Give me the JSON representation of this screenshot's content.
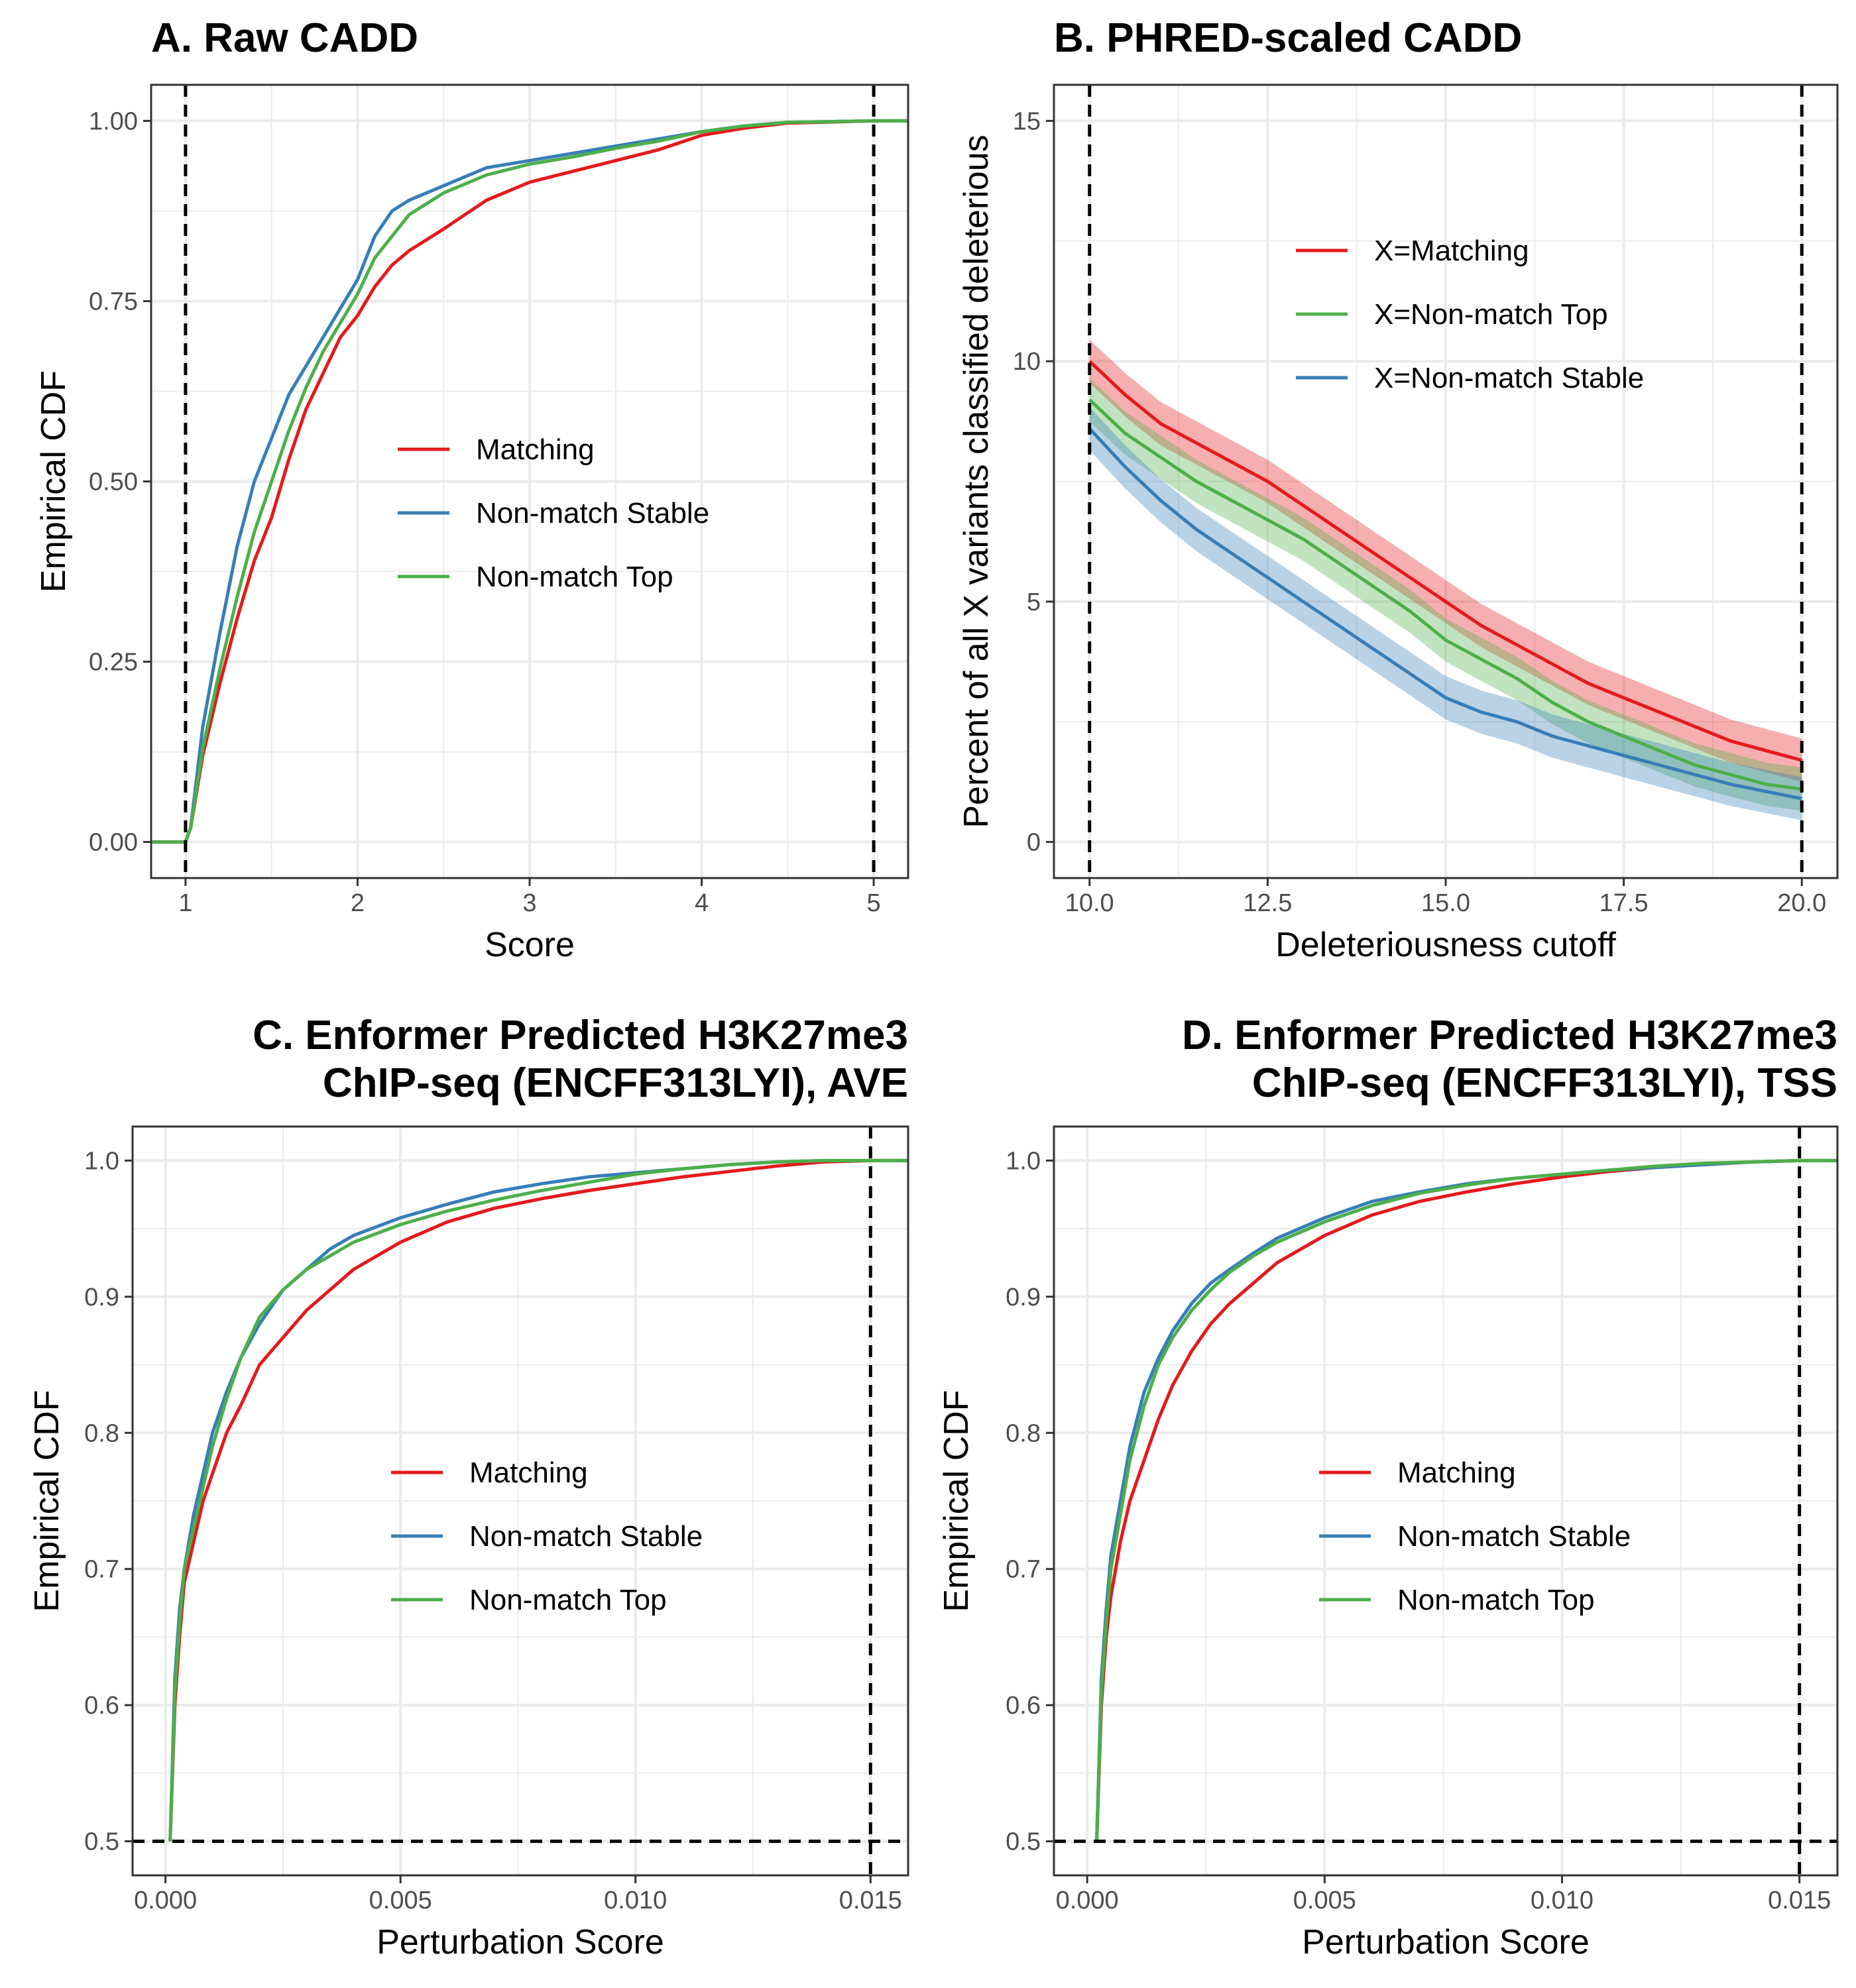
{
  "colors": {
    "matching": "#E41A1C",
    "stable": "#377EB8",
    "top": "#4DAF4A",
    "grid": "#EBEBEB"
  },
  "chart_data": [
    {
      "id": "A",
      "type": "line",
      "title": "A. Raw CADD",
      "xlabel": "Score",
      "ylabel": "Empirical CDF",
      "xlim": [
        0.8,
        5.2
      ],
      "ylim": [
        -0.05,
        1.05
      ],
      "xticks": [
        1,
        2,
        3,
        4,
        5
      ],
      "xtick_labels": [
        "1",
        "2",
        "3",
        "4",
        "5"
      ],
      "yticks": [
        0,
        0.25,
        0.5,
        0.75,
        1
      ],
      "ytick_labels": [
        "0.00",
        "0.25",
        "0.50",
        "0.75",
        "1.00"
      ],
      "vlines": [
        1,
        5
      ],
      "hlines": [],
      "grid": true,
      "legend_position": "center",
      "series": [
        {
          "name": "Matching",
          "color_key": "matching",
          "x": [
            0.8,
            1.0,
            1.03,
            1.1,
            1.2,
            1.3,
            1.4,
            1.5,
            1.6,
            1.7,
            1.8,
            1.9,
            2.0,
            2.1,
            2.2,
            2.3,
            2.5,
            2.75,
            3.0,
            3.25,
            3.5,
            3.75,
            4.0,
            4.25,
            4.5,
            5.0,
            5.2
          ],
          "y": [
            0,
            0,
            0.02,
            0.12,
            0.22,
            0.31,
            0.39,
            0.45,
            0.53,
            0.6,
            0.65,
            0.7,
            0.73,
            0.77,
            0.8,
            0.82,
            0.85,
            0.89,
            0.915,
            0.93,
            0.945,
            0.96,
            0.98,
            0.99,
            0.997,
            1.0,
            1.0
          ]
        },
        {
          "name": "Non-match Stable",
          "color_key": "stable",
          "x": [
            0.8,
            1.0,
            1.03,
            1.1,
            1.2,
            1.3,
            1.4,
            1.5,
            1.6,
            1.7,
            1.8,
            1.9,
            2.0,
            2.1,
            2.2,
            2.3,
            2.5,
            2.75,
            3.0,
            3.25,
            3.5,
            3.75,
            4.0,
            4.25,
            4.5,
            5.0,
            5.2
          ],
          "y": [
            0,
            0,
            0.02,
            0.16,
            0.29,
            0.41,
            0.5,
            0.56,
            0.62,
            0.66,
            0.7,
            0.74,
            0.78,
            0.84,
            0.875,
            0.89,
            0.91,
            0.935,
            0.945,
            0.955,
            0.965,
            0.975,
            0.985,
            0.993,
            0.998,
            1.0,
            1.0
          ]
        },
        {
          "name": "Non-match Top",
          "color_key": "top",
          "x": [
            0.8,
            1.0,
            1.03,
            1.1,
            1.2,
            1.3,
            1.4,
            1.5,
            1.6,
            1.7,
            1.8,
            1.9,
            2.0,
            2.1,
            2.2,
            2.3,
            2.5,
            2.75,
            3.0,
            3.25,
            3.5,
            3.75,
            4.0,
            4.25,
            4.5,
            5.0,
            5.2
          ],
          "y": [
            0,
            0,
            0.02,
            0.13,
            0.24,
            0.34,
            0.43,
            0.5,
            0.57,
            0.63,
            0.68,
            0.72,
            0.76,
            0.81,
            0.84,
            0.87,
            0.9,
            0.925,
            0.94,
            0.95,
            0.962,
            0.972,
            0.985,
            0.993,
            0.998,
            1.0,
            1.0
          ]
        }
      ]
    },
    {
      "id": "B",
      "type": "line",
      "title": "B. PHRED-scaled CADD",
      "xlabel": "Deleteriousness cutoff",
      "ylabel": "Percent of all X variants classified deleterious",
      "xlim": [
        9.5,
        20.5
      ],
      "ylim": [
        -0.75,
        15.75
      ],
      "xticks": [
        10,
        12.5,
        15,
        17.5,
        20
      ],
      "xtick_labels": [
        "10.0",
        "12.5",
        "15.0",
        "17.5",
        "20.0"
      ],
      "yticks": [
        0,
        5,
        10,
        15
      ],
      "ytick_labels": [
        "0",
        "5",
        "10",
        "15"
      ],
      "vlines": [
        10,
        20
      ],
      "hlines": [],
      "grid": true,
      "legend_position": "top-center",
      "ribbon_halfwidth": 0.45,
      "series": [
        {
          "name": "X=Matching",
          "color_key": "matching",
          "x": [
            10,
            10.5,
            11,
            11.5,
            12,
            12.5,
            13,
            13.5,
            14,
            14.5,
            15,
            15.5,
            16,
            16.5,
            17,
            17.5,
            18,
            18.5,
            19,
            19.5,
            20
          ],
          "y": [
            10.0,
            9.3,
            8.7,
            8.3,
            7.9,
            7.5,
            7.0,
            6.5,
            6.0,
            5.5,
            5.0,
            4.5,
            4.1,
            3.7,
            3.3,
            3.0,
            2.7,
            2.4,
            2.1,
            1.9,
            1.7
          ]
        },
        {
          "name": "X=Non-match Top",
          "color_key": "top",
          "x": [
            10,
            10.5,
            11,
            11.5,
            12,
            12.5,
            13,
            13.5,
            14,
            14.5,
            15,
            15.5,
            16,
            16.5,
            17,
            17.5,
            18,
            18.5,
            19,
            19.5,
            20
          ],
          "y": [
            9.2,
            8.5,
            8.0,
            7.5,
            7.1,
            6.7,
            6.3,
            5.8,
            5.3,
            4.8,
            4.2,
            3.8,
            3.4,
            2.9,
            2.5,
            2.2,
            1.9,
            1.6,
            1.4,
            1.2,
            1.1
          ]
        },
        {
          "name": "X=Non-match Stable",
          "color_key": "stable",
          "x": [
            10,
            10.5,
            11,
            11.5,
            12,
            12.5,
            13,
            13.5,
            14,
            14.5,
            15,
            15.5,
            16,
            16.5,
            17,
            17.5,
            18,
            18.5,
            19,
            19.5,
            20
          ],
          "y": [
            8.6,
            7.8,
            7.1,
            6.5,
            6.0,
            5.5,
            5.0,
            4.5,
            4.0,
            3.5,
            3.0,
            2.7,
            2.5,
            2.2,
            2.0,
            1.8,
            1.6,
            1.4,
            1.2,
            1.05,
            0.9
          ]
        }
      ]
    },
    {
      "id": "C",
      "type": "line",
      "title": "C. Enformer Predicted H3K27me3",
      "subtitle": "ChIP-seq (ENCFF313LYI), AVE",
      "xlabel": "Perturbation Score",
      "ylabel": "Empirical CDF",
      "xlim": [
        -0.0007,
        0.0158
      ],
      "ylim": [
        0.475,
        1.025
      ],
      "xticks": [
        0,
        0.005,
        0.01,
        0.015
      ],
      "xtick_labels": [
        "0.000",
        "0.005",
        "0.010",
        "0.015"
      ],
      "yticks": [
        0.5,
        0.6,
        0.7,
        0.8,
        0.9,
        1.0
      ],
      "ytick_labels": [
        "0.5",
        "0.6",
        "0.7",
        "0.8",
        "0.9",
        "1.0"
      ],
      "vlines": [
        0.015
      ],
      "hlines": [
        0.5
      ],
      "grid": true,
      "legend_position": "center",
      "series": [
        {
          "name": "Matching",
          "color_key": "matching",
          "x": [
            0.0001,
            0.0002,
            0.0003,
            0.0004,
            0.0006,
            0.0008,
            0.001,
            0.0013,
            0.0016,
            0.002,
            0.0025,
            0.003,
            0.0035,
            0.004,
            0.005,
            0.006,
            0.007,
            0.008,
            0.009,
            0.01,
            0.011,
            0.012,
            0.013,
            0.014,
            0.015,
            0.0158
          ],
          "y": [
            0.5,
            0.6,
            0.65,
            0.69,
            0.72,
            0.75,
            0.77,
            0.8,
            0.82,
            0.85,
            0.87,
            0.89,
            0.905,
            0.92,
            0.94,
            0.955,
            0.965,
            0.972,
            0.978,
            0.983,
            0.988,
            0.992,
            0.996,
            0.999,
            1.0,
            1.0
          ]
        },
        {
          "name": "Non-match Stable",
          "color_key": "stable",
          "x": [
            0.0001,
            0.0002,
            0.0003,
            0.0004,
            0.0006,
            0.0008,
            0.001,
            0.0013,
            0.0016,
            0.002,
            0.0025,
            0.003,
            0.0035,
            0.004,
            0.005,
            0.006,
            0.007,
            0.008,
            0.009,
            0.01,
            0.011,
            0.012,
            0.013,
            0.014,
            0.015,
            0.0158
          ],
          "y": [
            0.5,
            0.62,
            0.67,
            0.7,
            0.74,
            0.77,
            0.8,
            0.83,
            0.855,
            0.88,
            0.905,
            0.92,
            0.935,
            0.945,
            0.958,
            0.968,
            0.977,
            0.983,
            0.988,
            0.991,
            0.994,
            0.997,
            0.999,
            1.0,
            1.0,
            1.0
          ]
        },
        {
          "name": "Non-match Top",
          "color_key": "top",
          "x": [
            0.0001,
            0.0002,
            0.0003,
            0.0004,
            0.0006,
            0.0008,
            0.001,
            0.0013,
            0.0016,
            0.002,
            0.0025,
            0.003,
            0.0035,
            0.004,
            0.005,
            0.006,
            0.007,
            0.008,
            0.009,
            0.01,
            0.011,
            0.012,
            0.013,
            0.014,
            0.015,
            0.0158
          ],
          "y": [
            0.5,
            0.61,
            0.66,
            0.7,
            0.73,
            0.76,
            0.79,
            0.825,
            0.855,
            0.885,
            0.905,
            0.92,
            0.93,
            0.94,
            0.953,
            0.963,
            0.971,
            0.978,
            0.984,
            0.99,
            0.994,
            0.997,
            0.999,
            1.0,
            1.0,
            1.0
          ]
        }
      ]
    },
    {
      "id": "D",
      "type": "line",
      "title": "D. Enformer Predicted H3K27me3",
      "subtitle": "ChIP-seq (ENCFF313LYI), TSS",
      "xlabel": "Perturbation Score",
      "ylabel": "Empirical CDF",
      "xlim": [
        -0.0007,
        0.0158
      ],
      "ylim": [
        0.475,
        1.025
      ],
      "xticks": [
        0,
        0.005,
        0.01,
        0.015
      ],
      "xtick_labels": [
        "0.000",
        "0.005",
        "0.010",
        "0.015"
      ],
      "yticks": [
        0.5,
        0.6,
        0.7,
        0.8,
        0.9,
        1.0
      ],
      "ytick_labels": [
        "0.5",
        "0.6",
        "0.7",
        "0.8",
        "0.9",
        "1.0"
      ],
      "vlines": [
        0.015
      ],
      "hlines": [
        0.5
      ],
      "grid": true,
      "legend_position": "center",
      "series": [
        {
          "name": "Matching",
          "color_key": "matching",
          "x": [
            0.0002,
            0.0003,
            0.0004,
            0.0005,
            0.0007,
            0.0009,
            0.0012,
            0.0015,
            0.0018,
            0.0022,
            0.0026,
            0.003,
            0.0035,
            0.004,
            0.005,
            0.006,
            0.007,
            0.008,
            0.009,
            0.01,
            0.011,
            0.012,
            0.013,
            0.014,
            0.015,
            0.0158
          ],
          "y": [
            0.5,
            0.6,
            0.65,
            0.68,
            0.72,
            0.75,
            0.78,
            0.81,
            0.835,
            0.86,
            0.88,
            0.895,
            0.91,
            0.925,
            0.945,
            0.96,
            0.97,
            0.977,
            0.983,
            0.988,
            0.992,
            0.995,
            0.997,
            0.999,
            1.0,
            1.0
          ]
        },
        {
          "name": "Non-match Stable",
          "color_key": "stable",
          "x": [
            0.0002,
            0.0003,
            0.0004,
            0.0005,
            0.0007,
            0.0009,
            0.0012,
            0.0015,
            0.0018,
            0.0022,
            0.0026,
            0.003,
            0.0035,
            0.004,
            0.005,
            0.006,
            0.007,
            0.008,
            0.009,
            0.01,
            0.011,
            0.012,
            0.013,
            0.014,
            0.015,
            0.0158
          ],
          "y": [
            0.5,
            0.62,
            0.67,
            0.71,
            0.75,
            0.79,
            0.83,
            0.855,
            0.875,
            0.895,
            0.91,
            0.92,
            0.932,
            0.943,
            0.958,
            0.97,
            0.977,
            0.983,
            0.987,
            0.99,
            0.993,
            0.995,
            0.997,
            0.999,
            1.0,
            1.0
          ]
        },
        {
          "name": "Non-match Top",
          "color_key": "top",
          "x": [
            0.0002,
            0.0003,
            0.0004,
            0.0005,
            0.0007,
            0.0009,
            0.0012,
            0.0015,
            0.0018,
            0.0022,
            0.0026,
            0.003,
            0.0035,
            0.004,
            0.005,
            0.006,
            0.007,
            0.008,
            0.009,
            0.01,
            0.011,
            0.012,
            0.013,
            0.014,
            0.015,
            0.0158
          ],
          "y": [
            0.5,
            0.61,
            0.66,
            0.7,
            0.74,
            0.78,
            0.82,
            0.85,
            0.87,
            0.89,
            0.905,
            0.918,
            0.93,
            0.94,
            0.955,
            0.967,
            0.976,
            0.982,
            0.987,
            0.99,
            0.993,
            0.996,
            0.998,
            0.999,
            1.0,
            1.0
          ]
        }
      ]
    }
  ]
}
